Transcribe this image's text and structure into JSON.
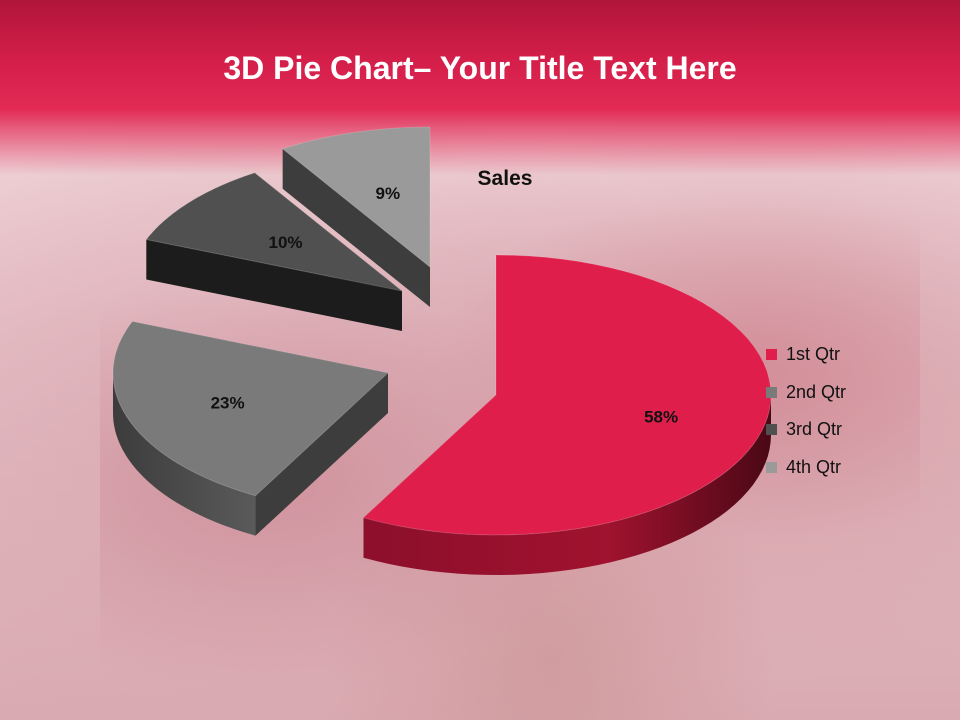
{
  "slide": {
    "title_bold": "3D Pie Chart",
    "title_rest": "– Your Title Text Here"
  },
  "chart_data": {
    "type": "pie",
    "title": "Sales",
    "categories": [
      "1st Qtr",
      "2nd Qtr",
      "3rd Qtr",
      "4th Qtr"
    ],
    "values": [
      58,
      23,
      10,
      9
    ],
    "data_labels": [
      "58%",
      "23%",
      "10%",
      "9%"
    ],
    "colors": [
      "#e01e4c",
      "#7a7a7a",
      "#505050",
      "#9a9a9a"
    ],
    "exploded": true,
    "three_d": true,
    "legend_position": "right"
  }
}
